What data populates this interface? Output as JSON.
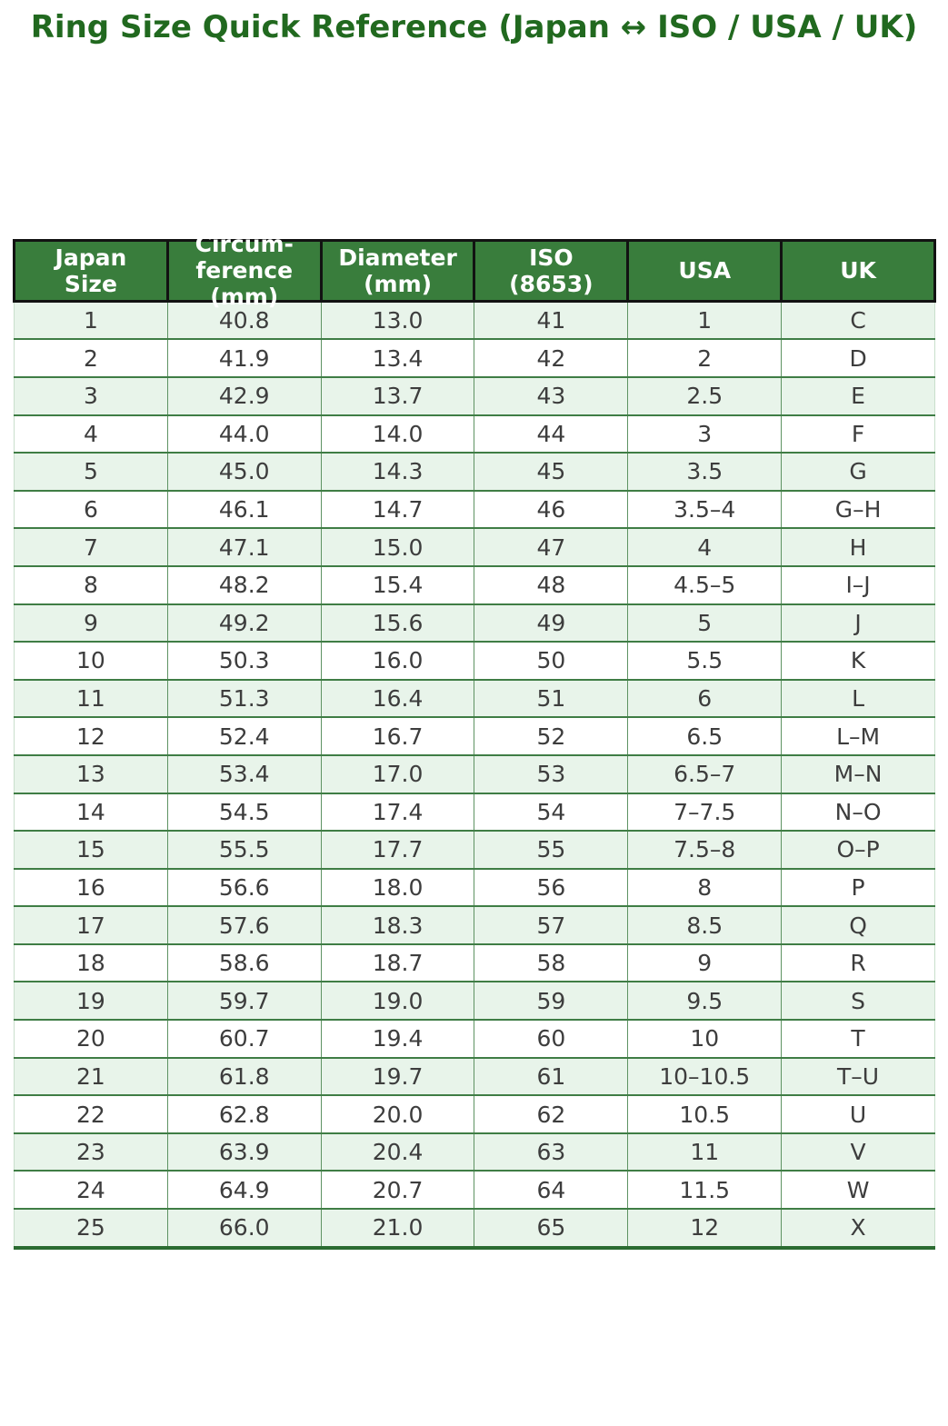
{
  "title": "Ring Size Quick Reference (Japan ↔ ISO / USA / UK)",
  "colors": {
    "title_text": "#21691f",
    "header_bg": "#397d3c",
    "header_text": "#ffffff",
    "row_alt_bg": "#e8f4ea",
    "row_base_bg": "#ffffff",
    "grid_horizontal": "#3f7d45",
    "grid_vertical": "#5e9363",
    "header_border": "#121212",
    "body_text": "#3d3d3d"
  },
  "header_display": [
    "Japan\nSize",
    "Circum-\nference\n(mm)",
    "Diameter\n(mm)",
    "ISO\n(8653)",
    "USA",
    "UK"
  ],
  "chart_data": {
    "type": "table",
    "title": "Ring Size Quick Reference (Japan ↔ ISO / USA / UK)",
    "columns": [
      "Japan Size",
      "Circum-ference (mm)",
      "Diameter (mm)",
      "ISO (8653)",
      "USA",
      "UK"
    ],
    "rows": [
      [
        "1",
        "40.8",
        "13.0",
        "41",
        "1",
        "C"
      ],
      [
        "2",
        "41.9",
        "13.4",
        "42",
        "2",
        "D"
      ],
      [
        "3",
        "42.9",
        "13.7",
        "43",
        "2.5",
        "E"
      ],
      [
        "4",
        "44.0",
        "14.0",
        "44",
        "3",
        "F"
      ],
      [
        "5",
        "45.0",
        "14.3",
        "45",
        "3.5",
        "G"
      ],
      [
        "6",
        "46.1",
        "14.7",
        "46",
        "3.5–4",
        "G–H"
      ],
      [
        "7",
        "47.1",
        "15.0",
        "47",
        "4",
        "H"
      ],
      [
        "8",
        "48.2",
        "15.4",
        "48",
        "4.5–5",
        "I–J"
      ],
      [
        "9",
        "49.2",
        "15.6",
        "49",
        "5",
        "J"
      ],
      [
        "10",
        "50.3",
        "16.0",
        "50",
        "5.5",
        "K"
      ],
      [
        "11",
        "51.3",
        "16.4",
        "51",
        "6",
        "L"
      ],
      [
        "12",
        "52.4",
        "16.7",
        "52",
        "6.5",
        "L–M"
      ],
      [
        "13",
        "53.4",
        "17.0",
        "53",
        "6.5–7",
        "M–N"
      ],
      [
        "14",
        "54.5",
        "17.4",
        "54",
        "7–7.5",
        "N–O"
      ],
      [
        "15",
        "55.5",
        "17.7",
        "55",
        "7.5–8",
        "O–P"
      ],
      [
        "16",
        "56.6",
        "18.0",
        "56",
        "8",
        "P"
      ],
      [
        "17",
        "57.6",
        "18.3",
        "57",
        "8.5",
        "Q"
      ],
      [
        "18",
        "58.6",
        "18.7",
        "58",
        "9",
        "R"
      ],
      [
        "19",
        "59.7",
        "19.0",
        "59",
        "9.5",
        "S"
      ],
      [
        "20",
        "60.7",
        "19.4",
        "60",
        "10",
        "T"
      ],
      [
        "21",
        "61.8",
        "19.7",
        "61",
        "10–10.5",
        "T–U"
      ],
      [
        "22",
        "62.8",
        "20.0",
        "62",
        "10.5",
        "U"
      ],
      [
        "23",
        "63.9",
        "20.4",
        "63",
        "11",
        "V"
      ],
      [
        "24",
        "64.9",
        "20.7",
        "64",
        "11.5",
        "W"
      ],
      [
        "25",
        "66.0",
        "21.0",
        "65",
        "12",
        "X"
      ]
    ]
  }
}
